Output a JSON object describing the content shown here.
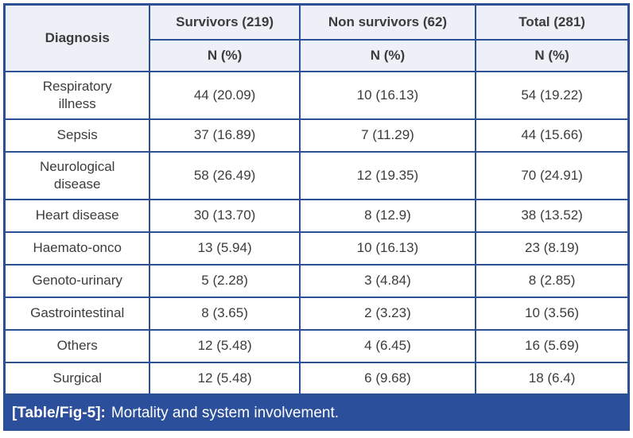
{
  "table": {
    "diagnosis_header": "Diagnosis",
    "subheader": "N (%)",
    "column_groups": [
      {
        "label": "Survivors (219)"
      },
      {
        "label": "Non survivors (62)"
      },
      {
        "label": "Total (281)"
      }
    ],
    "rows": [
      {
        "diagnosis": "Respiratory\nillness",
        "survivors": "44 (20.09)",
        "non_survivors": "10 (16.13)",
        "total": "54 (19.22)"
      },
      {
        "diagnosis": "Sepsis",
        "survivors": "37 (16.89)",
        "non_survivors": "7 (11.29)",
        "total": "44 (15.66)"
      },
      {
        "diagnosis": "Neurological\ndisease",
        "survivors": "58 (26.49)",
        "non_survivors": "12 (19.35)",
        "total": "70 (24.91)"
      },
      {
        "diagnosis": "Heart disease",
        "survivors": "30 (13.70)",
        "non_survivors": "8 (12.9)",
        "total": "38 (13.52)"
      },
      {
        "diagnosis": "Haemato-onco",
        "survivors": "13 (5.94)",
        "non_survivors": "10 (16.13)",
        "total": "23 (8.19)"
      },
      {
        "diagnosis": "Genoto-urinary",
        "survivors": "5 (2.28)",
        "non_survivors": "3 (4.84)",
        "total": "8 (2.85)"
      },
      {
        "diagnosis": "Gastrointestinal",
        "survivors": "8 (3.65)",
        "non_survivors": "2 (3.23)",
        "total": "10 (3.56)"
      },
      {
        "diagnosis": "Others",
        "survivors": "12 (5.48)",
        "non_survivors": "4 (6.45)",
        "total": "16 (5.69)"
      },
      {
        "diagnosis": "Surgical",
        "survivors": "12 (5.48)",
        "non_survivors": "6 (9.68)",
        "total": "18 (6.4)"
      }
    ]
  },
  "caption": {
    "tag": "[Table/Fig-5]:",
    "text": "Mortality and system involvement."
  },
  "colors": {
    "border_navy": "#2d4f94",
    "header_bg": "#edf0f7",
    "header_text_blue": "#2a52a3",
    "body_text": "#3c3c3c",
    "caption_bar_bg": "#2b4f9a",
    "caption_text": "#ffffff"
  }
}
